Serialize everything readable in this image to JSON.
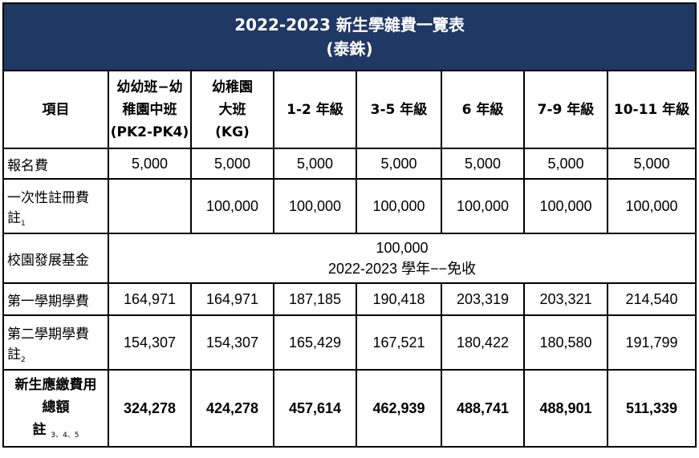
{
  "title": {
    "line1": "2022-2023 新生學雜費一覽表",
    "line2": "(泰銖)"
  },
  "headers": {
    "item": "項目",
    "columns": [
      [
        "幼幼班−幼",
        "稚園中班",
        "(PK2-PK4)"
      ],
      [
        "幼稚園",
        "大班",
        "(KG)"
      ],
      [
        "1-2  年級"
      ],
      [
        "3-5  年級"
      ],
      [
        "6  年級"
      ],
      [
        "7-9  年級"
      ],
      [
        "10-11 年級"
      ]
    ]
  },
  "rows": {
    "registration": {
      "label": "報名費",
      "values": [
        "5,000",
        "5,000",
        "5,000",
        "5,000",
        "5,000",
        "5,000",
        "5,000"
      ]
    },
    "enrollment": {
      "label_line1": "一次性註冊費",
      "label_line2": "註",
      "note": "1",
      "values": [
        "",
        "100,000",
        "100,000",
        "100,000",
        "100,000",
        "100,000",
        "100,000"
      ]
    },
    "development": {
      "label": "校園發展基金",
      "value_line1": "100,000",
      "value_line2": "2022-2023 學年−−免收"
    },
    "term1": {
      "label": "第一學期學費",
      "values": [
        "164,971",
        "164,971",
        "187,185",
        "190,418",
        "203,319",
        "203,321",
        "214,540"
      ]
    },
    "term2": {
      "label_line1": "第二學期學費",
      "label_line2": "註",
      "note": "2",
      "values": [
        "154,307",
        "154,307",
        "165,429",
        "167,521",
        "180,422",
        "180,580",
        "191,799"
      ]
    },
    "total": {
      "label_line1": "新生應繳費用",
      "label_line2": "總額",
      "label_line3": "註",
      "note": "3、4、5",
      "values": [
        "324,278",
        "424,278",
        "457,614",
        "462,939",
        "488,741",
        "488,901",
        "511,339"
      ]
    }
  }
}
